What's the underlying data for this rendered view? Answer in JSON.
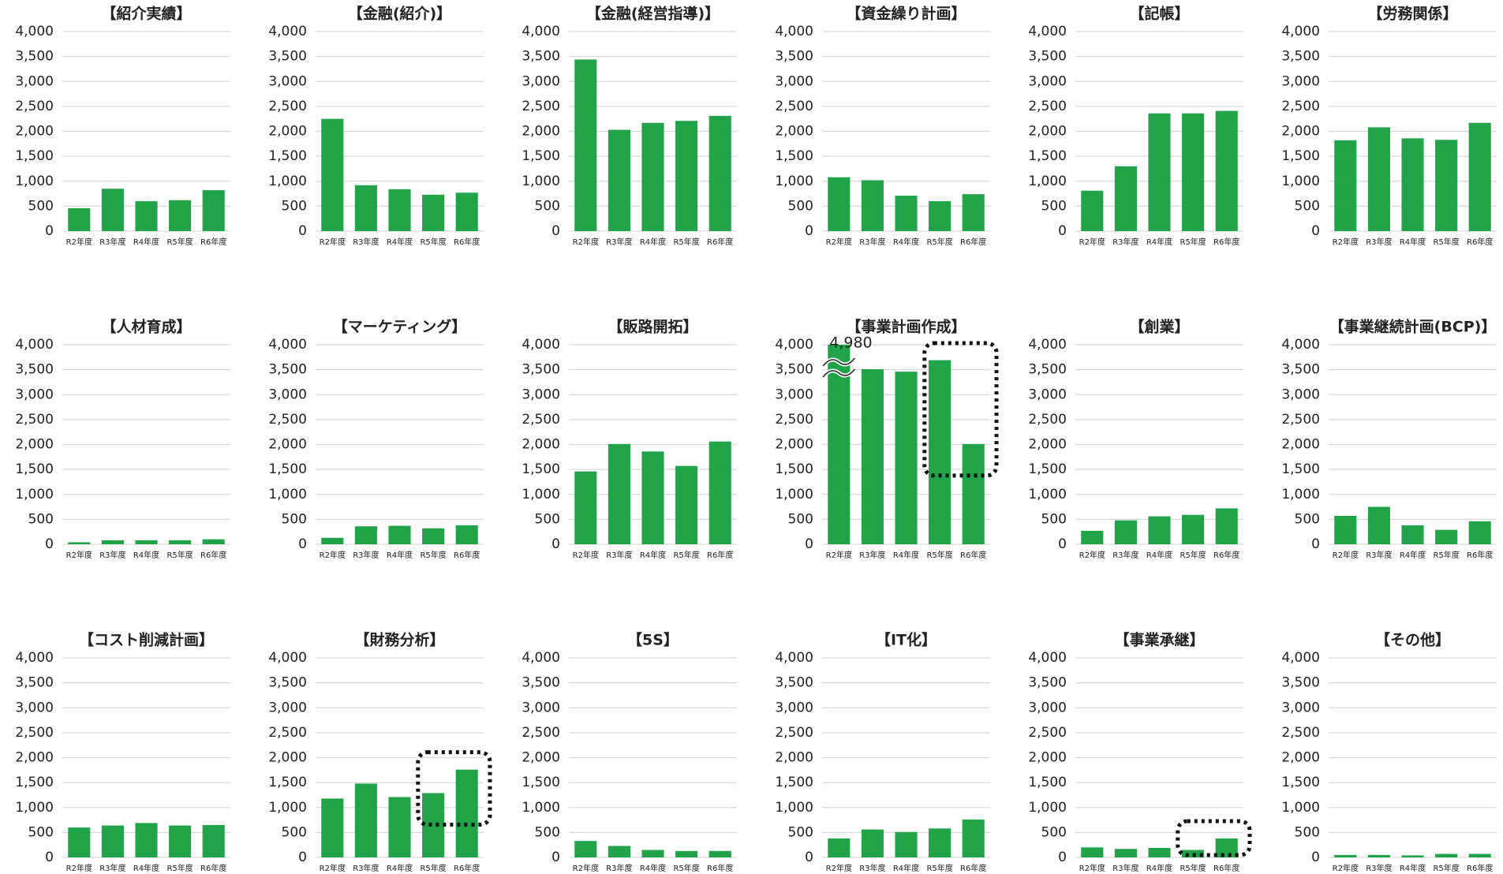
{
  "chart_data": [
    {
      "type": "bar",
      "title": "【紹介実績】",
      "categories": [
        "R2年度",
        "R3年度",
        "R4年度",
        "R5年度",
        "R6年度"
      ],
      "values": [
        460,
        850,
        600,
        620,
        820
      ],
      "color": "#21a348",
      "ylim": [
        0,
        4000
      ],
      "yticks": [
        0,
        500,
        {
          "value": 1000,
          "label": "1,000"
        },
        {
          "value": 1500,
          "label": "1,500"
        },
        {
          "value": 2000,
          "label": "2,000"
        },
        {
          "value": 2500,
          "label": "2,500"
        },
        {
          "value": 3000,
          "label": "3,000"
        },
        {
          "value": 3500,
          "label": "3,500"
        },
        {
          "value": 4000,
          "label": "4,000"
        }
      ],
      "grid": true
    },
    {
      "type": "bar",
      "title": "【金融(紹介)】",
      "categories": [
        "R2年度",
        "R3年度",
        "R4年度",
        "R5年度",
        "R6年度"
      ],
      "values": [
        2250,
        920,
        840,
        730,
        770
      ],
      "color": "#21a348",
      "ylim": [
        0,
        4000
      ],
      "yticks": [
        0,
        500,
        {
          "value": 1000,
          "label": "1,000"
        },
        {
          "value": 1500,
          "label": "1,500"
        },
        {
          "value": 2000,
          "label": "2,000"
        },
        {
          "value": 2500,
          "label": "2,500"
        },
        {
          "value": 3000,
          "label": "3,000"
        },
        {
          "value": 3500,
          "label": "3,500"
        },
        {
          "value": 4000,
          "label": "4,000"
        }
      ],
      "grid": true
    },
    {
      "type": "bar",
      "title": "【金融(経営指導)】",
      "categories": [
        "R2年度",
        "R3年度",
        "R4年度",
        "R5年度",
        "R6年度"
      ],
      "values": [
        3440,
        2030,
        2170,
        2210,
        2310
      ],
      "color": "#21a348",
      "ylim": [
        0,
        4000
      ],
      "yticks": [
        0,
        500,
        {
          "value": 1000,
          "label": "1,000"
        },
        {
          "value": 1500,
          "label": "1,500"
        },
        {
          "value": 2000,
          "label": "2,000"
        },
        {
          "value": 2500,
          "label": "2,500"
        },
        {
          "value": 3000,
          "label": "3,000"
        },
        {
          "value": 3500,
          "label": "3,500"
        },
        {
          "value": 4000,
          "label": "4,000"
        }
      ],
      "grid": true
    },
    {
      "type": "bar",
      "title": "【資金繰り計画】",
      "categories": [
        "R2年度",
        "R3年度",
        "R4年度",
        "R5年度",
        "R6年度"
      ],
      "values": [
        1080,
        1020,
        710,
        600,
        740
      ],
      "color": "#21a348",
      "ylim": [
        0,
        4000
      ],
      "yticks": [
        0,
        500,
        {
          "value": 1000,
          "label": "1,000"
        },
        {
          "value": 1500,
          "label": "1,500"
        },
        {
          "value": 2000,
          "label": "2,000"
        },
        {
          "value": 2500,
          "label": "2,500"
        },
        {
          "value": 3000,
          "label": "3,000"
        },
        {
          "value": 3500,
          "label": "3,500"
        },
        {
          "value": 4000,
          "label": "4,000"
        }
      ],
      "grid": true
    },
    {
      "type": "bar",
      "title": "【記帳】",
      "categories": [
        "R2年度",
        "R3年度",
        "R4年度",
        "R5年度",
        "R6年度"
      ],
      "values": [
        810,
        1300,
        2360,
        2360,
        2410
      ],
      "color": "#21a348",
      "ylim": [
        0,
        4000
      ],
      "yticks": [
        0,
        500,
        {
          "value": 1000,
          "label": "1,000"
        },
        {
          "value": 1500,
          "label": "1,500"
        },
        {
          "value": 2000,
          "label": "2,000"
        },
        {
          "value": 2500,
          "label": "2,500"
        },
        {
          "value": 3000,
          "label": "3,000"
        },
        {
          "value": 3500,
          "label": "3,500"
        },
        {
          "value": 4000,
          "label": "4,000"
        }
      ],
      "grid": true
    },
    {
      "type": "bar",
      "title": "【労務関係】",
      "categories": [
        "R2年度",
        "R3年度",
        "R4年度",
        "R5年度",
        "R6年度"
      ],
      "values": [
        1820,
        2080,
        1860,
        1830,
        2170
      ],
      "color": "#21a348",
      "ylim": [
        0,
        4000
      ],
      "yticks": [
        0,
        500,
        {
          "value": 1000,
          "label": "1,000"
        },
        {
          "value": 1500,
          "label": "1,500"
        },
        {
          "value": 2000,
          "label": "2,000"
        },
        {
          "value": 2500,
          "label": "2,500"
        },
        {
          "value": 3000,
          "label": "3,000"
        },
        {
          "value": 3500,
          "label": "3,500"
        },
        {
          "value": 4000,
          "label": "4,000"
        }
      ],
      "grid": true
    },
    {
      "type": "bar",
      "title": "【人材育成】",
      "categories": [
        "R2年度",
        "R3年度",
        "R4年度",
        "R5年度",
        "R6年度"
      ],
      "values": [
        40,
        80,
        80,
        80,
        100
      ],
      "color": "#21a348",
      "ylim": [
        0,
        4000
      ],
      "yticks": [
        0,
        500,
        {
          "value": 1000,
          "label": "1,000"
        },
        {
          "value": 1500,
          "label": "1,500"
        },
        {
          "value": 2000,
          "label": "2,000"
        },
        {
          "value": 2500,
          "label": "2,500"
        },
        {
          "value": 3000,
          "label": "3,000"
        },
        {
          "value": 3500,
          "label": "3,500"
        },
        {
          "value": 4000,
          "label": "4,000"
        }
      ],
      "grid": true
    },
    {
      "type": "bar",
      "title": "【マーケティング】",
      "categories": [
        "R2年度",
        "R3年度",
        "R4年度",
        "R5年度",
        "R6年度"
      ],
      "values": [
        130,
        360,
        370,
        320,
        380
      ],
      "color": "#21a348",
      "ylim": [
        0,
        4000
      ],
      "yticks": [
        0,
        500,
        {
          "value": 1000,
          "label": "1,000"
        },
        {
          "value": 1500,
          "label": "1,500"
        },
        {
          "value": 2000,
          "label": "2,000"
        },
        {
          "value": 2500,
          "label": "2,500"
        },
        {
          "value": 3000,
          "label": "3,000"
        },
        {
          "value": 3500,
          "label": "3,500"
        },
        {
          "value": 4000,
          "label": "4,000"
        }
      ],
      "grid": true
    },
    {
      "type": "bar",
      "title": "【販路開拓】",
      "categories": [
        "R2年度",
        "R3年度",
        "R4年度",
        "R5年度",
        "R6年度"
      ],
      "values": [
        1460,
        2010,
        1860,
        1570,
        2060
      ],
      "color": "#21a348",
      "ylim": [
        0,
        4000
      ],
      "yticks": [
        0,
        500,
        {
          "value": 1000,
          "label": "1,000"
        },
        {
          "value": 1500,
          "label": "1,500"
        },
        {
          "value": 2000,
          "label": "2,000"
        },
        {
          "value": 2500,
          "label": "2,500"
        },
        {
          "value": 3000,
          "label": "3,000"
        },
        {
          "value": 3500,
          "label": "3,500"
        },
        {
          "value": 4000,
          "label": "4,000"
        }
      ],
      "grid": true
    },
    {
      "type": "bar",
      "title": "【事業計画作成】",
      "categories": [
        "R2年度",
        "R3年度",
        "R4年度",
        "R5年度",
        "R6年度"
      ],
      "values": [
        4980,
        3510,
        3460,
        3690,
        2010
      ],
      "value_labels": [
        "4,980",
        null,
        null,
        null,
        null
      ],
      "color": "#21a348",
      "ylim": [
        0,
        4000
      ],
      "yticks": [
        0,
        500,
        {
          "value": 1000,
          "label": "1,000"
        },
        {
          "value": 1500,
          "label": "1,500"
        },
        {
          "value": 2000,
          "label": "2,000"
        },
        {
          "value": 2500,
          "label": "2,500"
        },
        {
          "value": 3000,
          "label": "3,000"
        },
        {
          "value": 3500,
          "label": "3,500"
        },
        {
          "value": 4000,
          "label": "4,000"
        }
      ],
      "grid": true,
      "highlight": [
        3,
        4
      ]
    },
    {
      "type": "bar",
      "title": "【創業】",
      "categories": [
        "R2年度",
        "R3年度",
        "R4年度",
        "R5年度",
        "R6年度"
      ],
      "values": [
        270,
        480,
        560,
        590,
        720
      ],
      "color": "#21a348",
      "ylim": [
        0,
        4000
      ],
      "yticks": [
        0,
        500,
        {
          "value": 1000,
          "label": "1,000"
        },
        {
          "value": 1500,
          "label": "1,500"
        },
        {
          "value": 2000,
          "label": "2,000"
        },
        {
          "value": 2500,
          "label": "2,500"
        },
        {
          "value": 3000,
          "label": "3,000"
        },
        {
          "value": 3500,
          "label": "3,500"
        },
        {
          "value": 4000,
          "label": "4,000"
        }
      ],
      "grid": true
    },
    {
      "type": "bar",
      "title": "【事業継続計画(BCP)】",
      "categories": [
        "R2年度",
        "R3年度",
        "R4年度",
        "R5年度",
        "R6年度"
      ],
      "values": [
        570,
        750,
        380,
        290,
        460
      ],
      "color": "#21a348",
      "ylim": [
        0,
        4000
      ],
      "yticks": [
        0,
        500,
        {
          "value": 1000,
          "label": "1,000"
        },
        {
          "value": 1500,
          "label": "1,500"
        },
        {
          "value": 2000,
          "label": "2,000"
        },
        {
          "value": 2500,
          "label": "2,500"
        },
        {
          "value": 3000,
          "label": "3,000"
        },
        {
          "value": 3500,
          "label": "3,500"
        },
        {
          "value": 4000,
          "label": "4,000"
        }
      ],
      "grid": true
    },
    {
      "type": "bar",
      "title": "【コスト削減計画】",
      "categories": [
        "R2年度",
        "R3年度",
        "R4年度",
        "R5年度",
        "R6年度"
      ],
      "values": [
        600,
        640,
        690,
        640,
        650
      ],
      "color": "#21a348",
      "ylim": [
        0,
        4000
      ],
      "yticks": [
        0,
        500,
        {
          "value": 1000,
          "label": "1,000"
        },
        {
          "value": 1500,
          "label": "1,500"
        },
        {
          "value": 2000,
          "label": "2,000"
        },
        {
          "value": 2500,
          "label": "2,500"
        },
        {
          "value": 3000,
          "label": "3,000"
        },
        {
          "value": 3500,
          "label": "3,500"
        },
        {
          "value": 4000,
          "label": "4,000"
        }
      ],
      "grid": true
    },
    {
      "type": "bar",
      "title": "【財務分析】",
      "categories": [
        "R2年度",
        "R3年度",
        "R4年度",
        "R5年度",
        "R6年度"
      ],
      "values": [
        1180,
        1480,
        1210,
        1290,
        1760
      ],
      "color": "#21a348",
      "ylim": [
        0,
        4000
      ],
      "yticks": [
        0,
        500,
        {
          "value": 1000,
          "label": "1,000"
        },
        {
          "value": 1500,
          "label": "1,500"
        },
        {
          "value": 2000,
          "label": "2,000"
        },
        {
          "value": 2500,
          "label": "2,500"
        },
        {
          "value": 3000,
          "label": "3,000"
        },
        {
          "value": 3500,
          "label": "3,500"
        },
        {
          "value": 4000,
          "label": "4,000"
        }
      ],
      "grid": true,
      "highlight": [
        3,
        4
      ]
    },
    {
      "type": "bar",
      "title": "【5S】",
      "categories": [
        "R2年度",
        "R3年度",
        "R4年度",
        "R5年度",
        "R6年度"
      ],
      "values": [
        330,
        230,
        150,
        130,
        130
      ],
      "color": "#21a348",
      "ylim": [
        0,
        4000
      ],
      "yticks": [
        0,
        500,
        {
          "value": 1000,
          "label": "1,000"
        },
        {
          "value": 1500,
          "label": "1,500"
        },
        {
          "value": 2000,
          "label": "2,000"
        },
        {
          "value": 2500,
          "label": "2,500"
        },
        {
          "value": 3000,
          "label": "3,000"
        },
        {
          "value": 3500,
          "label": "3,500"
        },
        {
          "value": 4000,
          "label": "4,000"
        }
      ],
      "grid": true
    },
    {
      "type": "bar",
      "title": "【IT化】",
      "categories": [
        "R2年度",
        "R3年度",
        "R4年度",
        "R5年度",
        "R6年度"
      ],
      "values": [
        380,
        560,
        510,
        580,
        760
      ],
      "color": "#21a348",
      "ylim": [
        0,
        4000
      ],
      "yticks": [
        0,
        500,
        {
          "value": 1000,
          "label": "1,000"
        },
        {
          "value": 1500,
          "label": "1,500"
        },
        {
          "value": 2000,
          "label": "2,000"
        },
        {
          "value": 2500,
          "label": "2,500"
        },
        {
          "value": 3000,
          "label": "3,000"
        },
        {
          "value": 3500,
          "label": "3,500"
        },
        {
          "value": 4000,
          "label": "4,000"
        }
      ],
      "grid": true
    },
    {
      "type": "bar",
      "title": "【事業承継】",
      "categories": [
        "R2年度",
        "R3年度",
        "R4年度",
        "R5年度",
        "R6年度"
      ],
      "values": [
        200,
        170,
        190,
        150,
        380
      ],
      "color": "#21a348",
      "ylim": [
        0,
        4000
      ],
      "yticks": [
        0,
        500,
        {
          "value": 1000,
          "label": "1,000"
        },
        {
          "value": 1500,
          "label": "1,500"
        },
        {
          "value": 2000,
          "label": "2,000"
        },
        {
          "value": 2500,
          "label": "2,500"
        },
        {
          "value": 3000,
          "label": "3,000"
        },
        {
          "value": 3500,
          "label": "3,500"
        },
        {
          "value": 4000,
          "label": "4,000"
        }
      ],
      "grid": true,
      "highlight": [
        3,
        4
      ]
    },
    {
      "type": "bar",
      "title": "【その他】",
      "categories": [
        "R2年度",
        "R3年度",
        "R4年度",
        "R5年度",
        "R6年度"
      ],
      "values": [
        50,
        50,
        40,
        70,
        70
      ],
      "color": "#21a348",
      "ylim": [
        0,
        4000
      ],
      "yticks": [
        0,
        500,
        {
          "value": 1000,
          "label": "1,000"
        },
        {
          "value": 1500,
          "label": "1,500"
        },
        {
          "value": 2000,
          "label": "2,000"
        },
        {
          "value": 2500,
          "label": "2,500"
        },
        {
          "value": 3000,
          "label": "3,000"
        },
        {
          "value": 3500,
          "label": "3,500"
        },
        {
          "value": 4000,
          "label": "4,000"
        }
      ],
      "grid": true
    }
  ]
}
